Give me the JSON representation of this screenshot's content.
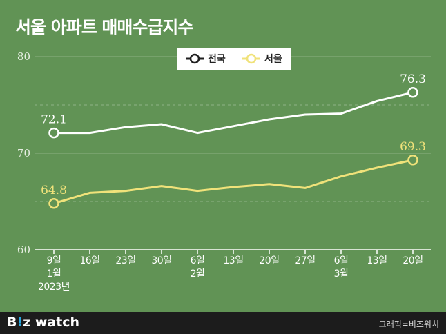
{
  "title": "서울 아파트 매매수급지수",
  "chart_data": {
    "type": "line",
    "categories": [
      [
        "9일",
        "1월",
        "2023년"
      ],
      [
        "16일"
      ],
      [
        "23일"
      ],
      [
        "30일"
      ],
      [
        "6일",
        "2월"
      ],
      [
        "13일"
      ],
      [
        "20일"
      ],
      [
        "27일"
      ],
      [
        "6일",
        "3월"
      ],
      [
        "13일"
      ],
      [
        "20일"
      ]
    ],
    "series": [
      {
        "name": "전국",
        "color": "#ffffff",
        "values": [
          72.1,
          72.1,
          72.7,
          73.0,
          72.1,
          72.8,
          73.5,
          74.0,
          74.1,
          75.4,
          76.3
        ]
      },
      {
        "name": "서울",
        "color": "#f0e27a",
        "values": [
          64.8,
          65.9,
          66.1,
          66.6,
          66.1,
          66.5,
          66.8,
          66.4,
          67.6,
          68.5,
          69.3
        ]
      }
    ],
    "ylim": [
      60,
      80
    ],
    "yticks": [
      "60",
      "70",
      "80"
    ],
    "annotations": [
      {
        "series": 0,
        "index": 0,
        "text": "72.1"
      },
      {
        "series": 0,
        "index": 10,
        "text": "76.3"
      },
      {
        "series": 1,
        "index": 0,
        "text": "64.8"
      },
      {
        "series": 1,
        "index": 10,
        "text": "69.3"
      }
    ],
    "grid": true,
    "legend": "top-center"
  },
  "footer": {
    "logo_b": "B",
    "logo_i": "!",
    "logo_rest": "z watch",
    "credit": "그래픽=비즈워치"
  }
}
